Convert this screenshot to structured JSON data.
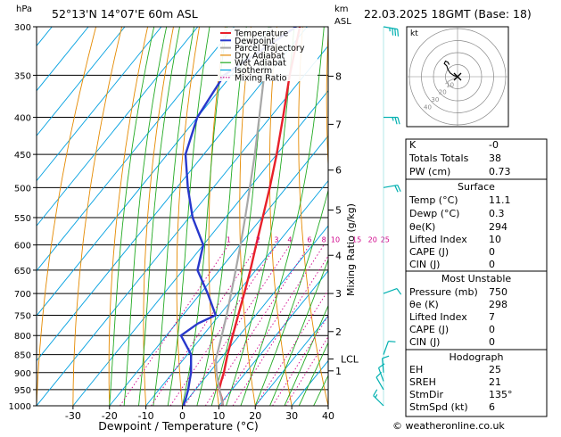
{
  "header": {
    "location": "52°13'N  14°07'E  60m  ASL",
    "datetime": "22.03.2025  18GMT  (Base: 18)",
    "hpa_label": "hPa",
    "km_label": "km",
    "asl_label": "ASL"
  },
  "chart_data": {
    "type": "line",
    "title": "",
    "xlabel": "Dewpoint / Temperature (°C)",
    "ylabel": "hPa",
    "y2label": "Mixing Ratio (g/kg)",
    "xlim": [
      -40,
      40
    ],
    "ylim": [
      1000,
      300
    ],
    "y_scale": "log",
    "skew": true,
    "grid": true,
    "legend_position": "top-left",
    "x_ticks": [
      -30,
      -20,
      -10,
      0,
      10,
      20,
      30,
      40
    ],
    "pressure_levels": [
      300,
      350,
      400,
      450,
      500,
      550,
      600,
      650,
      700,
      750,
      800,
      850,
      900,
      950,
      1000
    ],
    "km_ticks": [
      {
        "label": "8",
        "p": 351
      },
      {
        "label": "7",
        "p": 409
      },
      {
        "label": "6",
        "p": 473
      },
      {
        "label": "5",
        "p": 537
      },
      {
        "label": "4",
        "p": 620
      },
      {
        "label": "3",
        "p": 700
      },
      {
        "label": "2",
        "p": 790
      },
      {
        "label": "LCL",
        "p": 862
      },
      {
        "label": "1",
        "p": 895
      }
    ],
    "mixing_ratio_labels": [
      {
        "label": "1",
        "t": -22
      },
      {
        "label": "2",
        "t": -15
      },
      {
        "label": "3",
        "t": -11
      },
      {
        "label": "4",
        "t": -8
      },
      {
        "label": "6",
        "t": -4
      },
      {
        "label": "8",
        "t": -1
      },
      {
        "label": "10",
        "t": 1
      },
      {
        "label": "15",
        "t": 5
      },
      {
        "label": "20",
        "t": 8
      },
      {
        "label": "25",
        "t": 10
      }
    ],
    "legend": [
      {
        "name": "Temperature",
        "color": "#e8202a",
        "style": "solid"
      },
      {
        "name": "Dewpoint",
        "color": "#2838cc",
        "style": "solid"
      },
      {
        "name": "Parcel Trajectory",
        "color": "#a8a8a8",
        "style": "solid"
      },
      {
        "name": "Dry Adiabat",
        "color": "#e58a00",
        "style": "solid"
      },
      {
        "name": "Wet Adiabat",
        "color": "#22aa22",
        "style": "solid"
      },
      {
        "name": "Isotherm",
        "color": "#00a0e0",
        "style": "solid"
      },
      {
        "name": "Mixing Ratio",
        "color": "#d0008a",
        "style": "dotted"
      }
    ],
    "series": [
      {
        "name": "Temperature",
        "color": "#e8202a",
        "points": [
          {
            "p": 1000,
            "t": 11.1
          },
          {
            "p": 975,
            "t": 9.0
          },
          {
            "p": 950,
            "t": 6.5
          },
          {
            "p": 925,
            "t": 5.2
          },
          {
            "p": 900,
            "t": 4.0
          },
          {
            "p": 850,
            "t": 1.0
          },
          {
            "p": 800,
            "t": -1.8
          },
          {
            "p": 750,
            "t": -4.8
          },
          {
            "p": 700,
            "t": -8.0
          },
          {
            "p": 650,
            "t": -11.5
          },
          {
            "p": 600,
            "t": -15.5
          },
          {
            "p": 550,
            "t": -19.8
          },
          {
            "p": 500,
            "t": -24.5
          },
          {
            "p": 450,
            "t": -30.0
          },
          {
            "p": 400,
            "t": -36.5
          },
          {
            "p": 350,
            "t": -44.0
          },
          {
            "p": 300,
            "t": -52.0
          }
        ]
      },
      {
        "name": "Dewpoint",
        "color": "#2838cc",
        "points": [
          {
            "p": 1000,
            "t": 0.3
          },
          {
            "p": 975,
            "t": -0.8
          },
          {
            "p": 950,
            "t": -2.0
          },
          {
            "p": 925,
            "t": -3.5
          },
          {
            "p": 900,
            "t": -5.0
          },
          {
            "p": 850,
            "t": -9.0
          },
          {
            "p": 800,
            "t": -16.0
          },
          {
            "p": 770,
            "t": -14.0
          },
          {
            "p": 750,
            "t": -11.0
          },
          {
            "p": 700,
            "t": -18.0
          },
          {
            "p": 650,
            "t": -26.0
          },
          {
            "p": 600,
            "t": -30.0
          },
          {
            "p": 550,
            "t": -39.0
          },
          {
            "p": 500,
            "t": -47.0
          },
          {
            "p": 450,
            "t": -55.0
          },
          {
            "p": 400,
            "t": -60.0
          },
          {
            "p": 350,
            "t": -62.0
          },
          {
            "p": 300,
            "t": -53.0
          }
        ]
      },
      {
        "name": "Parcel Trajectory",
        "color": "#a8a8a8",
        "points": [
          {
            "p": 1000,
            "t": 11.1
          },
          {
            "p": 950,
            "t": 6.6
          },
          {
            "p": 900,
            "t": 2.0
          },
          {
            "p": 862,
            "t": -1.2
          },
          {
            "p": 800,
            "t": -4.8
          },
          {
            "p": 750,
            "t": -8.0
          },
          {
            "p": 700,
            "t": -11.6
          },
          {
            "p": 650,
            "t": -15.5
          },
          {
            "p": 600,
            "t": -19.8
          },
          {
            "p": 550,
            "t": -24.6
          },
          {
            "p": 500,
            "t": -30.0
          },
          {
            "p": 450,
            "t": -36.0
          },
          {
            "p": 400,
            "t": -43.0
          },
          {
            "p": 350,
            "t": -51.0
          },
          {
            "p": 300,
            "t": -60.0
          }
        ]
      }
    ]
  },
  "wind_barbs": [
    {
      "p": 1000,
      "dir": 135,
      "spd": 6
    },
    {
      "p": 950,
      "dir": 150,
      "spd": 10
    },
    {
      "p": 925,
      "dir": 160,
      "spd": 12
    },
    {
      "p": 900,
      "dir": 175,
      "spd": 12
    },
    {
      "p": 850,
      "dir": 200,
      "spd": 10
    },
    {
      "p": 700,
      "dir": 250,
      "spd": 12
    },
    {
      "p": 500,
      "dir": 260,
      "spd": 20
    },
    {
      "p": 400,
      "dir": 270,
      "spd": 15
    },
    {
      "p": 300,
      "dir": 280,
      "spd": 25
    }
  ],
  "hodograph": {
    "unit_label": "kt",
    "ring_labels": [
      "10",
      "20",
      "30",
      "40"
    ],
    "trace": [
      [
        0,
        0
      ],
      [
        -3,
        1
      ],
      [
        -6,
        3
      ],
      [
        -8,
        6
      ],
      [
        -9,
        9
      ],
      [
        -11,
        11
      ],
      [
        -10,
        13
      ],
      [
        -8,
        12
      ],
      [
        -7,
        10
      ]
    ],
    "gray_trace": [
      [
        -4,
        -2
      ],
      [
        -8,
        -4
      ],
      [
        -10,
        -6
      ]
    ]
  },
  "indices": {
    "rows": [
      {
        "label": "K",
        "value": "-0"
      },
      {
        "label": "Totals Totals",
        "value": "38"
      },
      {
        "label": "PW (cm)",
        "value": "0.73"
      }
    ]
  },
  "surface": {
    "title": "Surface",
    "rows": [
      {
        "label": "Temp (°C)",
        "value": "11.1"
      },
      {
        "label": "Dewp (°C)",
        "value": "0.3"
      },
      {
        "label": "θe(K)",
        "value": "294"
      },
      {
        "label": "Lifted Index",
        "value": "10"
      },
      {
        "label": "CAPE (J)",
        "value": "0"
      },
      {
        "label": "CIN (J)",
        "value": "0"
      }
    ]
  },
  "most_unstable": {
    "title": "Most Unstable",
    "rows": [
      {
        "label": "Pressure (mb)",
        "value": "750"
      },
      {
        "label": "θe (K)",
        "value": "298"
      },
      {
        "label": "Lifted Index",
        "value": "7"
      },
      {
        "label": "CAPE (J)",
        "value": "0"
      },
      {
        "label": "CIN (J)",
        "value": "0"
      }
    ]
  },
  "hodograph_table": {
    "title": "Hodograph",
    "rows": [
      {
        "label": "EH",
        "value": "25"
      },
      {
        "label": "SREH",
        "value": "21"
      },
      {
        "label": "StmDir",
        "value": "135°"
      },
      {
        "label": "StmSpd (kt)",
        "value": "6"
      }
    ]
  },
  "footer": {
    "copyright": "© weatheronline.co.uk"
  },
  "colors": {
    "temperature": "#e8202a",
    "dewpoint": "#2838cc",
    "parcel": "#a8a8a8",
    "dry_adiabat": "#e58a00",
    "wet_adiabat": "#22aa22",
    "isotherm": "#00a0e0",
    "mixing_ratio": "#d0008a",
    "wind_barb": "#00b0b0"
  }
}
